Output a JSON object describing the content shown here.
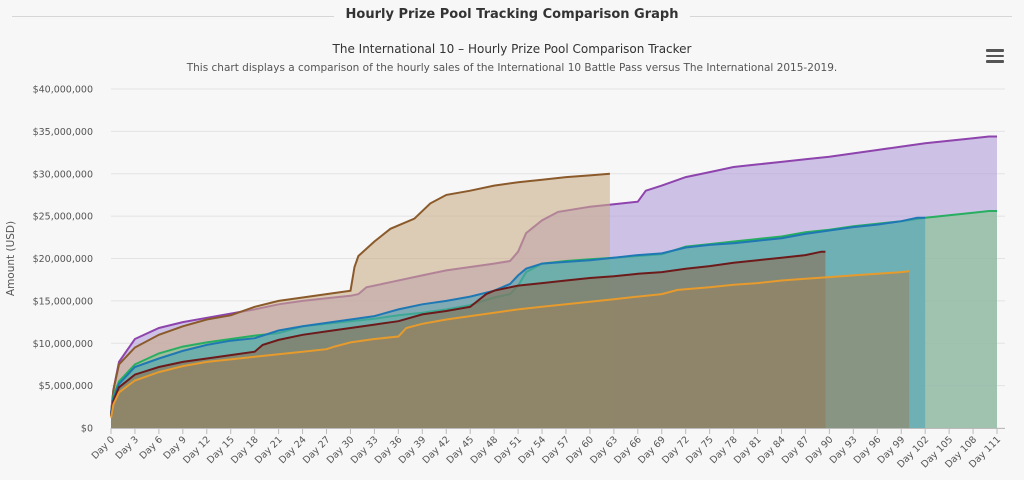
{
  "header": {
    "title": "Hourly Prize Pool Tracking Comparison Graph"
  },
  "menu": {
    "icon": "hamburger-menu-icon"
  },
  "chart_data": {
    "type": "area",
    "title": "The International 10 – Hourly Prize Pool Comparison Tracker",
    "subtitle": "This chart displays a comparison of the hourly sales of the International 10 Battle Pass versus The International 2015-2019.",
    "xlabel": "",
    "ylabel": "Amount (USD)",
    "xlim": [
      0,
      112
    ],
    "ylim": [
      0,
      40000000
    ],
    "grid": true,
    "y_ticks": [
      {
        "value": 0,
        "label": "$0"
      },
      {
        "value": 5000000,
        "label": "$5,000,000"
      },
      {
        "value": 10000000,
        "label": "$10,000,000"
      },
      {
        "value": 15000000,
        "label": "$15,000,000"
      },
      {
        "value": 20000000,
        "label": "$20,000,000"
      },
      {
        "value": 25000000,
        "label": "$25,000,000"
      },
      {
        "value": 30000000,
        "label": "$30,000,000"
      },
      {
        "value": 35000000,
        "label": "$35,000,000"
      },
      {
        "value": 40000000,
        "label": "$40,000,000"
      }
    ],
    "x_ticks": [
      {
        "value": 0,
        "label": "Day 0"
      },
      {
        "value": 3,
        "label": "Day 3"
      },
      {
        "value": 6,
        "label": "Day 6"
      },
      {
        "value": 9,
        "label": "Day 9"
      },
      {
        "value": 12,
        "label": "Day 12"
      },
      {
        "value": 15,
        "label": "Day 15"
      },
      {
        "value": 18,
        "label": "Day 18"
      },
      {
        "value": 21,
        "label": "Day 21"
      },
      {
        "value": 24,
        "label": "Day 24"
      },
      {
        "value": 27,
        "label": "Day 27"
      },
      {
        "value": 30,
        "label": "Day 30"
      },
      {
        "value": 33,
        "label": "Day 33"
      },
      {
        "value": 36,
        "label": "Day 36"
      },
      {
        "value": 39,
        "label": "Day 39"
      },
      {
        "value": 42,
        "label": "Day 42"
      },
      {
        "value": 45,
        "label": "Day 45"
      },
      {
        "value": 48,
        "label": "Day 48"
      },
      {
        "value": 51,
        "label": "Day 51"
      },
      {
        "value": 54,
        "label": "Day 54"
      },
      {
        "value": 57,
        "label": "Day 57"
      },
      {
        "value": 60,
        "label": "Day 60"
      },
      {
        "value": 63,
        "label": "Day 63"
      },
      {
        "value": 66,
        "label": "Day 66"
      },
      {
        "value": 69,
        "label": "Day 69"
      },
      {
        "value": 72,
        "label": "Day 72"
      },
      {
        "value": 75,
        "label": "Day 75"
      },
      {
        "value": 78,
        "label": "Day 78"
      },
      {
        "value": 81,
        "label": "Day 81"
      },
      {
        "value": 84,
        "label": "Day 84"
      },
      {
        "value": 87,
        "label": "Day 87"
      },
      {
        "value": 90,
        "label": "Day 90"
      },
      {
        "value": 93,
        "label": "Day 93"
      },
      {
        "value": 96,
        "label": "Day 96"
      },
      {
        "value": 99,
        "label": "Day 99"
      },
      {
        "value": 102,
        "label": "Day 102"
      },
      {
        "value": 105,
        "label": "Day 105"
      },
      {
        "value": 108,
        "label": "Day 108"
      },
      {
        "value": 111,
        "label": "Day 111"
      }
    ],
    "series": [
      {
        "line_color": "#8e44ad",
        "fill_color": "#b39ddb",
        "points": [
          [
            0,
            1.8
          ],
          [
            0.3,
            4.5
          ],
          [
            1,
            7.8
          ],
          [
            3,
            10.5
          ],
          [
            6,
            11.8
          ],
          [
            9,
            12.5
          ],
          [
            12,
            13.0
          ],
          [
            15,
            13.5
          ],
          [
            18,
            14.0
          ],
          [
            21,
            14.6
          ],
          [
            24,
            15.0
          ],
          [
            27,
            15.3
          ],
          [
            30,
            15.6
          ],
          [
            31,
            15.8
          ],
          [
            32,
            16.6
          ],
          [
            35,
            17.2
          ],
          [
            39,
            18.0
          ],
          [
            42,
            18.6
          ],
          [
            45,
            19.0
          ],
          [
            48,
            19.4
          ],
          [
            50,
            19.7
          ],
          [
            51,
            20.8
          ],
          [
            52,
            23.0
          ],
          [
            54,
            24.5
          ],
          [
            56,
            25.5
          ],
          [
            58,
            25.8
          ],
          [
            60,
            26.1
          ],
          [
            63,
            26.4
          ],
          [
            66,
            26.7
          ],
          [
            67,
            28.0
          ],
          [
            69,
            28.6
          ],
          [
            72,
            29.6
          ],
          [
            75,
            30.2
          ],
          [
            78,
            30.8
          ],
          [
            81,
            31.1
          ],
          [
            84,
            31.4
          ],
          [
            87,
            31.7
          ],
          [
            90,
            32.0
          ],
          [
            93,
            32.4
          ],
          [
            96,
            32.8
          ],
          [
            99,
            33.2
          ],
          [
            102,
            33.6
          ],
          [
            105,
            33.9
          ],
          [
            108,
            34.2
          ],
          [
            110,
            34.4
          ],
          [
            111,
            34.4
          ]
        ]
      },
      {
        "line_color": "#8b5a2b",
        "fill_color": "#c9ad89",
        "points": [
          [
            0,
            1.5
          ],
          [
            0.3,
            4.5
          ],
          [
            1,
            7.5
          ],
          [
            3,
            9.5
          ],
          [
            6,
            11.0
          ],
          [
            9,
            12.0
          ],
          [
            12,
            12.8
          ],
          [
            15,
            13.3
          ],
          [
            18,
            14.3
          ],
          [
            21,
            15.0
          ],
          [
            24,
            15.4
          ],
          [
            27,
            15.8
          ],
          [
            30,
            16.2
          ],
          [
            30.5,
            19.0
          ],
          [
            31,
            20.3
          ],
          [
            33,
            22.0
          ],
          [
            35,
            23.5
          ],
          [
            38,
            24.7
          ],
          [
            40,
            26.5
          ],
          [
            42,
            27.5
          ],
          [
            45,
            28.0
          ],
          [
            48,
            28.6
          ],
          [
            51,
            29.0
          ],
          [
            54,
            29.3
          ],
          [
            57,
            29.6
          ],
          [
            60,
            29.8
          ],
          [
            62.5,
            30.0
          ]
        ]
      },
      {
        "line_color": "#27ae60",
        "fill_color": "#82c48c",
        "points": [
          [
            0,
            1.6
          ],
          [
            0.3,
            3.8
          ],
          [
            1,
            5.5
          ],
          [
            3,
            7.5
          ],
          [
            6,
            8.8
          ],
          [
            9,
            9.6
          ],
          [
            12,
            10.1
          ],
          [
            15,
            10.5
          ],
          [
            18,
            10.9
          ],
          [
            21,
            11.2
          ],
          [
            24,
            12.0
          ],
          [
            27,
            12.3
          ],
          [
            30,
            12.6
          ],
          [
            33,
            12.9
          ],
          [
            36,
            13.3
          ],
          [
            39,
            13.6
          ],
          [
            42,
            14.0
          ],
          [
            45,
            14.5
          ],
          [
            48,
            15.4
          ],
          [
            50,
            15.8
          ],
          [
            51,
            16.8
          ],
          [
            52,
            18.4
          ],
          [
            54,
            19.4
          ],
          [
            57,
            19.7
          ],
          [
            60,
            19.9
          ],
          [
            63,
            20.1
          ],
          [
            66,
            20.3
          ],
          [
            69,
            20.5
          ],
          [
            72,
            21.4
          ],
          [
            75,
            21.7
          ],
          [
            78,
            22.0
          ],
          [
            81,
            22.3
          ],
          [
            84,
            22.6
          ],
          [
            87,
            23.1
          ],
          [
            90,
            23.4
          ],
          [
            93,
            23.8
          ],
          [
            96,
            24.1
          ],
          [
            99,
            24.4
          ],
          [
            102,
            24.8
          ],
          [
            105,
            25.1
          ],
          [
            108,
            25.4
          ],
          [
            110,
            25.6
          ],
          [
            111,
            25.6
          ]
        ]
      },
      {
        "line_color": "#1f78b4",
        "fill_color": "#4fa3b8",
        "points": [
          [
            0,
            1.6
          ],
          [
            0.3,
            3.5
          ],
          [
            1,
            5.2
          ],
          [
            3,
            7.2
          ],
          [
            6,
            8.2
          ],
          [
            9,
            9.1
          ],
          [
            12,
            9.8
          ],
          [
            15,
            10.3
          ],
          [
            18,
            10.6
          ],
          [
            21,
            11.5
          ],
          [
            24,
            12.0
          ],
          [
            27,
            12.4
          ],
          [
            30,
            12.8
          ],
          [
            33,
            13.2
          ],
          [
            36,
            14.0
          ],
          [
            39,
            14.6
          ],
          [
            42,
            15.0
          ],
          [
            45,
            15.5
          ],
          [
            48,
            16.2
          ],
          [
            50,
            17.0
          ],
          [
            51,
            18.0
          ],
          [
            52,
            18.8
          ],
          [
            54,
            19.4
          ],
          [
            57,
            19.6
          ],
          [
            60,
            19.8
          ],
          [
            63,
            20.1
          ],
          [
            66,
            20.4
          ],
          [
            69,
            20.6
          ],
          [
            72,
            21.3
          ],
          [
            75,
            21.6
          ],
          [
            78,
            21.8
          ],
          [
            81,
            22.1
          ],
          [
            84,
            22.4
          ],
          [
            87,
            22.9
          ],
          [
            90,
            23.3
          ],
          [
            93,
            23.7
          ],
          [
            96,
            24.0
          ],
          [
            99,
            24.4
          ],
          [
            101,
            24.8
          ],
          [
            102,
            24.8
          ]
        ]
      },
      {
        "line_color": "#6d1a1a",
        "fill_color": "#8a6e55",
        "points": [
          [
            0,
            1.4
          ],
          [
            0.3,
            3.2
          ],
          [
            1,
            4.8
          ],
          [
            3,
            6.3
          ],
          [
            6,
            7.2
          ],
          [
            9,
            7.8
          ],
          [
            12,
            8.2
          ],
          [
            15,
            8.6
          ],
          [
            18,
            9.0
          ],
          [
            19,
            9.8
          ],
          [
            21,
            10.4
          ],
          [
            24,
            11.0
          ],
          [
            27,
            11.4
          ],
          [
            30,
            11.8
          ],
          [
            33,
            12.2
          ],
          [
            36,
            12.6
          ],
          [
            39,
            13.4
          ],
          [
            42,
            13.8
          ],
          [
            45,
            14.3
          ],
          [
            47,
            15.8
          ],
          [
            48,
            16.2
          ],
          [
            51,
            16.8
          ],
          [
            54,
            17.1
          ],
          [
            57,
            17.4
          ],
          [
            60,
            17.7
          ],
          [
            63,
            17.9
          ],
          [
            66,
            18.2
          ],
          [
            69,
            18.4
          ],
          [
            72,
            18.8
          ],
          [
            75,
            19.1
          ],
          [
            78,
            19.5
          ],
          [
            81,
            19.8
          ],
          [
            84,
            20.1
          ],
          [
            87,
            20.4
          ],
          [
            89,
            20.8
          ],
          [
            89.5,
            20.8
          ]
        ]
      },
      {
        "line_color": "#e69b2c",
        "fill_color": "#9a8460",
        "points": [
          [
            0,
            1.2
          ],
          [
            0.3,
            2.8
          ],
          [
            1,
            4.2
          ],
          [
            3,
            5.6
          ],
          [
            6,
            6.6
          ],
          [
            9,
            7.3
          ],
          [
            12,
            7.8
          ],
          [
            15,
            8.1
          ],
          [
            18,
            8.4
          ],
          [
            21,
            8.7
          ],
          [
            24,
            9.0
          ],
          [
            27,
            9.3
          ],
          [
            28,
            9.6
          ],
          [
            30,
            10.1
          ],
          [
            33,
            10.5
          ],
          [
            36,
            10.8
          ],
          [
            37,
            11.8
          ],
          [
            39,
            12.3
          ],
          [
            42,
            12.8
          ],
          [
            45,
            13.2
          ],
          [
            48,
            13.6
          ],
          [
            51,
            14.0
          ],
          [
            54,
            14.3
          ],
          [
            57,
            14.6
          ],
          [
            60,
            14.9
          ],
          [
            63,
            15.2
          ],
          [
            66,
            15.5
          ],
          [
            69,
            15.8
          ],
          [
            71,
            16.3
          ],
          [
            75,
            16.6
          ],
          [
            78,
            16.9
          ],
          [
            81,
            17.1
          ],
          [
            84,
            17.4
          ],
          [
            87,
            17.6
          ],
          [
            90,
            17.8
          ],
          [
            93,
            18.0
          ],
          [
            96,
            18.2
          ],
          [
            99,
            18.4
          ],
          [
            100,
            18.5
          ]
        ]
      }
    ]
  }
}
